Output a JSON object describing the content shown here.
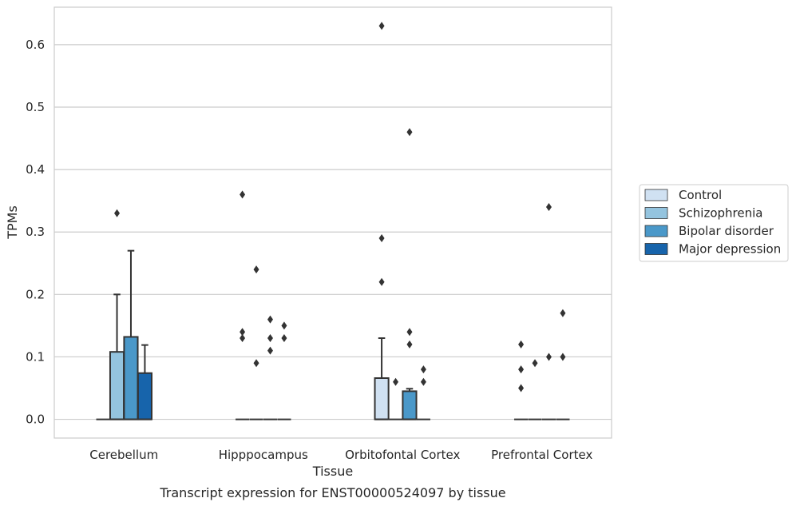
{
  "chart_data": {
    "type": "box",
    "title": "",
    "xlabel": "Tissue",
    "ylabel": "TPMs",
    "caption": "Transcript expression for ENST00000524097 by tissue",
    "ylim": [
      -0.03,
      0.66
    ],
    "yticks": [
      0.0,
      0.1,
      0.2,
      0.3,
      0.4,
      0.5,
      0.6
    ],
    "ytick_labels": [
      "0.0",
      "0.1",
      "0.2",
      "0.3",
      "0.4",
      "0.5",
      "0.6"
    ],
    "grid": "horizontal",
    "legend_position": "right",
    "categories": [
      "Cerebellum",
      "Hipppocampus",
      "Orbitofontal Cortex",
      "Prefrontal Cortex"
    ],
    "series": [
      {
        "name": "Control",
        "color": "#d0e1f2"
      },
      {
        "name": "Schizophrenia",
        "color": "#94c4df"
      },
      {
        "name": "Bipolar disorder",
        "color": "#4a98c9"
      },
      {
        "name": "Major depression",
        "color": "#1764ab"
      }
    ],
    "boxes": [
      [
        {
          "q1": 0,
          "median": 0,
          "q3": 0,
          "whisker_low": 0,
          "whisker_high": 0,
          "outliers": []
        },
        {
          "q1": 0,
          "median": 0,
          "q3": 0.108,
          "whisker_low": 0,
          "whisker_high": 0.2,
          "outliers": [
            0.33
          ]
        },
        {
          "q1": 0,
          "median": 0,
          "q3": 0.132,
          "whisker_low": 0,
          "whisker_high": 0.27,
          "outliers": []
        },
        {
          "q1": 0,
          "median": 0,
          "q3": 0.074,
          "whisker_low": 0,
          "whisker_high": 0.119,
          "outliers": []
        }
      ],
      [
        {
          "q1": 0,
          "median": 0,
          "q3": 0,
          "whisker_low": 0,
          "whisker_high": 0,
          "outliers": [
            0.36,
            0.14,
            0.13
          ]
        },
        {
          "q1": 0,
          "median": 0,
          "q3": 0,
          "whisker_low": 0,
          "whisker_high": 0,
          "outliers": [
            0.24,
            0.09
          ]
        },
        {
          "q1": 0,
          "median": 0,
          "q3": 0,
          "whisker_low": 0,
          "whisker_high": 0,
          "outliers": [
            0.16,
            0.13,
            0.11
          ]
        },
        {
          "q1": 0,
          "median": 0,
          "q3": 0,
          "whisker_low": 0,
          "whisker_high": 0,
          "outliers": [
            0.15,
            0.13
          ]
        }
      ],
      [
        {
          "q1": 0,
          "median": 0,
          "q3": 0.066,
          "whisker_low": 0,
          "whisker_high": 0.13,
          "outliers": [
            0.63,
            0.29,
            0.22
          ]
        },
        {
          "q1": 0,
          "median": 0,
          "q3": 0,
          "whisker_low": 0,
          "whisker_high": 0,
          "outliers": [
            0.06
          ]
        },
        {
          "q1": 0,
          "median": 0,
          "q3": 0.045,
          "whisker_low": 0,
          "whisker_high": 0.049,
          "outliers": [
            0.46,
            0.14,
            0.12
          ]
        },
        {
          "q1": 0,
          "median": 0,
          "q3": 0,
          "whisker_low": 0,
          "whisker_high": 0,
          "outliers": [
            0.08,
            0.06
          ]
        }
      ],
      [
        {
          "q1": 0,
          "median": 0,
          "q3": 0,
          "whisker_low": 0,
          "whisker_high": 0,
          "outliers": [
            0.12,
            0.08,
            0.05
          ]
        },
        {
          "q1": 0,
          "median": 0,
          "q3": 0,
          "whisker_low": 0,
          "whisker_high": 0,
          "outliers": [
            0.09
          ]
        },
        {
          "q1": 0,
          "median": 0,
          "q3": 0,
          "whisker_low": 0,
          "whisker_high": 0,
          "outliers": [
            0.34,
            0.1
          ]
        },
        {
          "q1": 0,
          "median": 0,
          "q3": 0,
          "whisker_low": 0,
          "whisker_high": 0,
          "outliers": [
            0.17,
            0.1
          ]
        }
      ]
    ]
  }
}
